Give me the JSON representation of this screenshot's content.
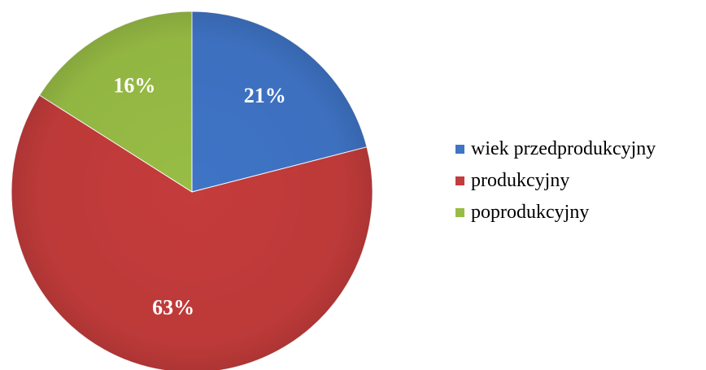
{
  "chart_data": {
    "type": "pie",
    "categories": [
      "wiek przedprodukcyjny",
      "produkcyjny",
      "poprodukcyjny"
    ],
    "values": [
      21,
      63,
      16
    ],
    "data_labels": [
      "21%",
      "63%",
      "16%"
    ],
    "colors": [
      "#3f74c6",
      "#c43c3b",
      "#98bd45"
    ],
    "legend": "right",
    "start_angle": "12 o'clock",
    "direction": "clockwise"
  }
}
